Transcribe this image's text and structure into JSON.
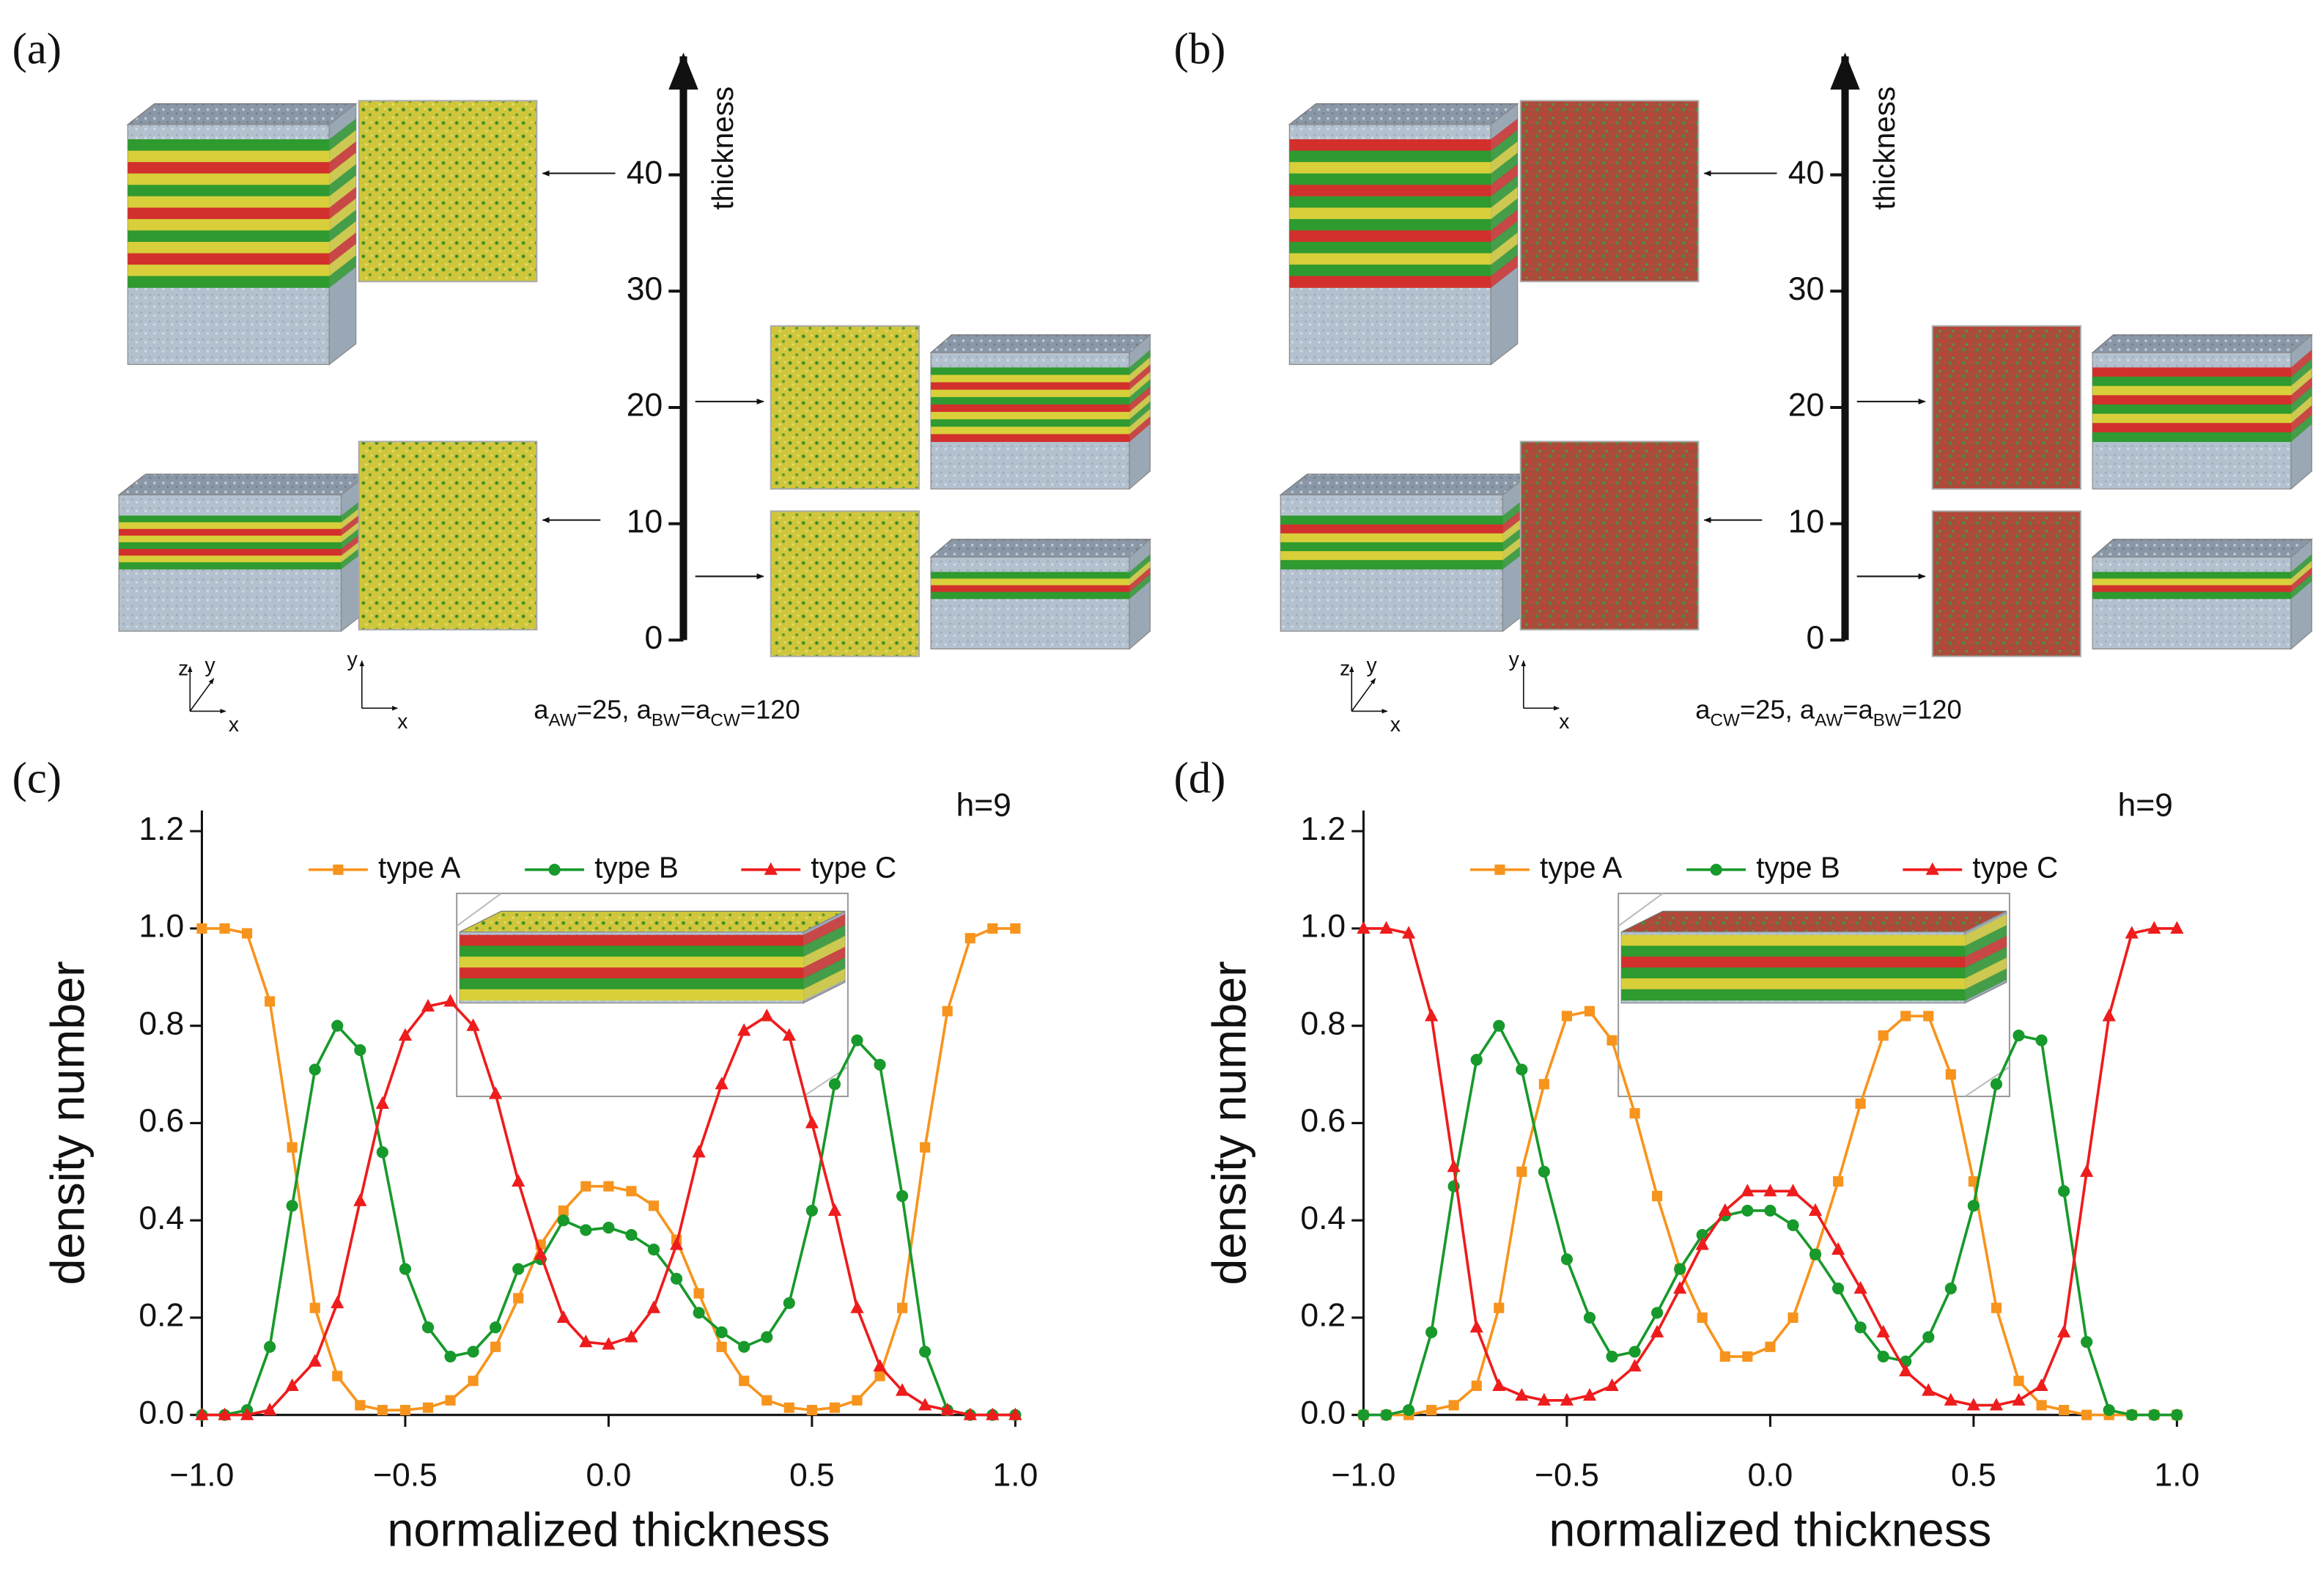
{
  "panels": [
    {
      "label": "(a)",
      "axis_label": "thickness",
      "ticks": [
        0,
        10,
        20,
        30,
        40
      ],
      "params": [
        "a",
        "AW",
        "=25, a",
        "BW",
        "=a",
        "CW",
        "=120"
      ],
      "coord_3d": [
        "z",
        "y",
        "x"
      ],
      "coord_2d": [
        "y",
        "x"
      ]
    },
    {
      "label": "(b)",
      "axis_label": "thickness",
      "ticks": [
        0,
        10,
        20,
        30,
        40
      ],
      "params": [
        "a",
        "CW",
        "=25, a",
        "AW",
        "=a",
        "BW",
        "=120"
      ],
      "coord_3d": [
        "z",
        "y",
        "x"
      ],
      "coord_2d": [
        "y",
        "x"
      ]
    }
  ],
  "chart_data": [
    {
      "type": "line",
      "panel_label": "(c)",
      "annotation": "h=9",
      "xlabel": "normalized thickness",
      "ylabel": "density number",
      "xlim": [
        -1,
        1
      ],
      "ylim": [
        0,
        1.2
      ],
      "xticks": [
        {
          "value": -1,
          "label": "−1.0"
        },
        {
          "value": -0.5,
          "label": "−0.5"
        },
        {
          "value": 0,
          "label": "0.0"
        },
        0.5,
        {
          "value": 1,
          "label": "1.0"
        }
      ],
      "yticks": [
        {
          "value": 0,
          "label": "0.0"
        },
        0.2,
        0.4,
        0.6,
        0.8,
        {
          "value": 1,
          "label": "1.0"
        },
        1.2
      ],
      "x": [
        -1,
        -0.944,
        -0.889,
        -0.833,
        -0.778,
        -0.722,
        -0.667,
        -0.611,
        -0.556,
        -0.5,
        -0.444,
        -0.389,
        -0.333,
        -0.278,
        -0.222,
        -0.167,
        -0.111,
        -0.056,
        0,
        0.056,
        0.111,
        0.167,
        0.222,
        0.278,
        0.333,
        0.389,
        0.444,
        0.5,
        0.556,
        0.611,
        0.667,
        0.722,
        0.778,
        0.833,
        0.889,
        0.944,
        1
      ],
      "series": [
        {
          "name": "type A",
          "color": "#f7941d",
          "marker": "square",
          "values": [
            1.0,
            1.0,
            0.99,
            0.85,
            0.55,
            0.22,
            0.08,
            0.02,
            0.01,
            0.01,
            0.015,
            0.03,
            0.07,
            0.14,
            0.24,
            0.35,
            0.42,
            0.47,
            0.47,
            0.46,
            0.43,
            0.36,
            0.25,
            0.14,
            0.07,
            0.03,
            0.015,
            0.01,
            0.015,
            0.03,
            0.08,
            0.22,
            0.55,
            0.83,
            0.98,
            1.0,
            1.0
          ]
        },
        {
          "name": "type B",
          "color": "#17992b",
          "marker": "circle",
          "values": [
            0,
            0,
            0.01,
            0.14,
            0.43,
            0.71,
            0.8,
            0.75,
            0.54,
            0.3,
            0.18,
            0.12,
            0.13,
            0.18,
            0.3,
            0.32,
            0.4,
            0.38,
            0.385,
            0.37,
            0.34,
            0.28,
            0.21,
            0.17,
            0.14,
            0.16,
            0.23,
            0.42,
            0.68,
            0.77,
            0.72,
            0.45,
            0.13,
            0.01,
            0,
            0,
            0
          ]
        },
        {
          "name": "type C",
          "color": "#ee1c1c",
          "marker": "triangle",
          "values": [
            0,
            0,
            0,
            0.01,
            0.06,
            0.11,
            0.23,
            0.44,
            0.64,
            0.78,
            0.84,
            0.85,
            0.8,
            0.66,
            0.48,
            0.33,
            0.2,
            0.15,
            0.145,
            0.16,
            0.22,
            0.35,
            0.54,
            0.68,
            0.79,
            0.82,
            0.78,
            0.6,
            0.42,
            0.22,
            0.1,
            0.05,
            0.02,
            0.01,
            0,
            0,
            0
          ]
        }
      ]
    },
    {
      "type": "line",
      "panel_label": "(d)",
      "annotation": "h=9",
      "xlabel": "normalized thickness",
      "ylabel": "density number",
      "xlim": [
        -1,
        1
      ],
      "ylim": [
        0,
        1.2
      ],
      "xticks": [
        {
          "value": -1,
          "label": "−1.0"
        },
        {
          "value": -0.5,
          "label": "−0.5"
        },
        {
          "value": 0,
          "label": "0.0"
        },
        0.5,
        {
          "value": 1,
          "label": "1.0"
        }
      ],
      "yticks": [
        {
          "value": 0,
          "label": "0.0"
        },
        0.2,
        0.4,
        0.6,
        0.8,
        {
          "value": 1,
          "label": "1.0"
        },
        1.2
      ],
      "x": [
        -1,
        -0.944,
        -0.889,
        -0.833,
        -0.778,
        -0.722,
        -0.667,
        -0.611,
        -0.556,
        -0.5,
        -0.444,
        -0.389,
        -0.333,
        -0.278,
        -0.222,
        -0.167,
        -0.111,
        -0.056,
        0,
        0.056,
        0.111,
        0.167,
        0.222,
        0.278,
        0.333,
        0.389,
        0.444,
        0.5,
        0.556,
        0.611,
        0.667,
        0.722,
        0.778,
        0.833,
        0.889,
        0.944,
        1
      ],
      "series": [
        {
          "name": "type A",
          "color": "#f7941d",
          "marker": "square",
          "values": [
            0,
            0,
            0,
            0.01,
            0.02,
            0.06,
            0.22,
            0.5,
            0.68,
            0.82,
            0.83,
            0.77,
            0.62,
            0.45,
            0.3,
            0.2,
            0.12,
            0.12,
            0.14,
            0.2,
            0.33,
            0.48,
            0.64,
            0.78,
            0.82,
            0.82,
            0.7,
            0.48,
            0.22,
            0.07,
            0.02,
            0.01,
            0,
            0,
            0,
            0,
            0
          ]
        },
        {
          "name": "type B",
          "color": "#17992b",
          "marker": "circle",
          "values": [
            0,
            0,
            0.01,
            0.17,
            0.47,
            0.73,
            0.8,
            0.71,
            0.5,
            0.32,
            0.2,
            0.12,
            0.13,
            0.21,
            0.3,
            0.37,
            0.41,
            0.42,
            0.42,
            0.39,
            0.33,
            0.26,
            0.18,
            0.12,
            0.11,
            0.16,
            0.26,
            0.43,
            0.68,
            0.78,
            0.77,
            0.46,
            0.15,
            0.01,
            0,
            0,
            0
          ]
        },
        {
          "name": "type C",
          "color": "#ee1c1c",
          "marker": "triangle",
          "values": [
            1,
            1,
            0.99,
            0.82,
            0.51,
            0.18,
            0.06,
            0.04,
            0.03,
            0.03,
            0.04,
            0.06,
            0.1,
            0.17,
            0.26,
            0.35,
            0.42,
            0.46,
            0.46,
            0.46,
            0.42,
            0.34,
            0.26,
            0.17,
            0.09,
            0.05,
            0.03,
            0.02,
            0.02,
            0.03,
            0.06,
            0.17,
            0.5,
            0.82,
            0.99,
            1,
            1
          ]
        }
      ]
    }
  ]
}
